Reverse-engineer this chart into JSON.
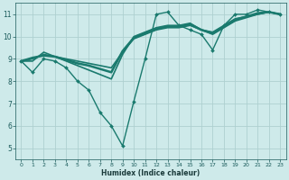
{
  "background_color": "#ceeaea",
  "grid_color": "#aed0d0",
  "line_color": "#1a7a6e",
  "xlabel": "Humidex (Indice chaleur)",
  "xlim": [
    -0.5,
    23.5
  ],
  "ylim": [
    4.5,
    11.5
  ],
  "xticks": [
    0,
    1,
    2,
    3,
    4,
    5,
    6,
    7,
    8,
    9,
    10,
    11,
    12,
    13,
    14,
    15,
    16,
    17,
    18,
    19,
    20,
    21,
    22,
    23
  ],
  "yticks": [
    5,
    6,
    7,
    8,
    9,
    10,
    11
  ],
  "lines": [
    {
      "x": [
        0,
        1,
        2,
        3,
        4,
        5,
        6,
        7,
        8,
        9,
        10,
        11,
        12,
        13,
        14,
        15,
        16,
        17,
        18,
        19,
        20,
        21,
        22,
        23
      ],
      "y": [
        8.9,
        8.4,
        9.0,
        8.9,
        8.6,
        8.0,
        7.6,
        6.6,
        6.0,
        5.1,
        7.1,
        9.0,
        11.0,
        11.1,
        10.5,
        10.3,
        10.1,
        9.4,
        10.5,
        11.0,
        11.0,
        11.2,
        11.1,
        11.0
      ],
      "marker": "D",
      "lw": 1.0
    },
    {
      "x": [
        0,
        1,
        2,
        3,
        4,
        5,
        6,
        7,
        8,
        9,
        10,
        11,
        12,
        13,
        14,
        15,
        16,
        17,
        18,
        19,
        20,
        21,
        22,
        23
      ],
      "y": [
        8.9,
        8.9,
        9.3,
        9.1,
        8.9,
        8.7,
        8.5,
        8.3,
        8.1,
        9.2,
        10.0,
        10.2,
        10.4,
        10.5,
        10.5,
        10.6,
        10.3,
        10.2,
        10.5,
        10.8,
        10.9,
        11.0,
        11.1,
        11.0
      ],
      "marker": null,
      "lw": 1.2
    },
    {
      "x": [
        0,
        1,
        2,
        3,
        4,
        5,
        6,
        7,
        8,
        9,
        10,
        11,
        12,
        13,
        14,
        15,
        16,
        17,
        18,
        19,
        20,
        21,
        22,
        23
      ],
      "y": [
        8.9,
        9.0,
        9.2,
        9.1,
        9.0,
        8.9,
        8.8,
        8.7,
        8.6,
        9.3,
        9.9,
        10.1,
        10.3,
        10.4,
        10.4,
        10.5,
        10.3,
        10.1,
        10.4,
        10.7,
        10.85,
        11.0,
        11.1,
        11.0
      ],
      "marker": null,
      "lw": 1.2
    },
    {
      "x": [
        0,
        1,
        2,
        3,
        4,
        5,
        6,
        7,
        8,
        9,
        10,
        11,
        12,
        13,
        14,
        15,
        16,
        17,
        18,
        19,
        20,
        21,
        22,
        23
      ],
      "y": [
        8.9,
        9.05,
        9.15,
        9.1,
        8.95,
        8.8,
        8.7,
        8.55,
        8.4,
        9.35,
        9.95,
        10.15,
        10.35,
        10.45,
        10.45,
        10.55,
        10.3,
        10.15,
        10.45,
        10.75,
        10.9,
        11.05,
        11.1,
        11.0
      ],
      "marker": null,
      "lw": 1.8
    }
  ]
}
